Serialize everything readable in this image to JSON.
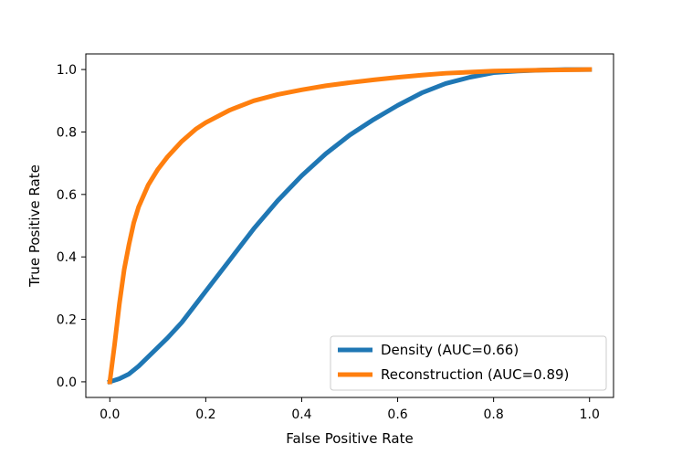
{
  "chart_data": {
    "type": "line",
    "title": "",
    "xlabel": "False Positive Rate",
    "ylabel": "True Positive Rate",
    "xlim": [
      -0.05,
      1.05
    ],
    "ylim": [
      -0.05,
      1.05
    ],
    "xticks": [
      0.0,
      0.2,
      0.4,
      0.6,
      0.8,
      1.0
    ],
    "yticks": [
      0.0,
      0.2,
      0.4,
      0.6,
      0.8,
      1.0
    ],
    "xtick_labels": [
      "0.0",
      "0.2",
      "0.4",
      "0.6",
      "0.8",
      "1.0"
    ],
    "ytick_labels": [
      "0.0",
      "0.2",
      "0.4",
      "0.6",
      "0.8",
      "1.0"
    ],
    "grid": false,
    "legend_position": "lower-right",
    "series": [
      {
        "name": "Density (AUC=0.66)",
        "color": "#1f77b4",
        "x": [
          0.0,
          0.02,
          0.04,
          0.06,
          0.08,
          0.1,
          0.12,
          0.15,
          0.18,
          0.2,
          0.25,
          0.3,
          0.35,
          0.4,
          0.45,
          0.5,
          0.55,
          0.6,
          0.65,
          0.7,
          0.75,
          0.8,
          0.85,
          0.9,
          0.95,
          1.0
        ],
        "y": [
          0.0,
          0.01,
          0.025,
          0.05,
          0.08,
          0.11,
          0.14,
          0.19,
          0.25,
          0.29,
          0.39,
          0.49,
          0.58,
          0.66,
          0.73,
          0.79,
          0.84,
          0.885,
          0.925,
          0.955,
          0.975,
          0.99,
          0.995,
          0.998,
          1.0,
          1.0
        ]
      },
      {
        "name": "Reconstruction (AUC=0.89)",
        "color": "#ff7f0e",
        "x": [
          0.0,
          0.01,
          0.02,
          0.03,
          0.04,
          0.05,
          0.06,
          0.08,
          0.1,
          0.12,
          0.15,
          0.18,
          0.2,
          0.25,
          0.3,
          0.35,
          0.4,
          0.45,
          0.5,
          0.55,
          0.6,
          0.65,
          0.7,
          0.8,
          0.9,
          1.0
        ],
        "y": [
          0.0,
          0.12,
          0.25,
          0.36,
          0.44,
          0.51,
          0.56,
          0.63,
          0.68,
          0.72,
          0.77,
          0.81,
          0.83,
          0.87,
          0.9,
          0.92,
          0.935,
          0.948,
          0.958,
          0.967,
          0.975,
          0.982,
          0.988,
          0.995,
          0.998,
          1.0
        ]
      }
    ]
  }
}
